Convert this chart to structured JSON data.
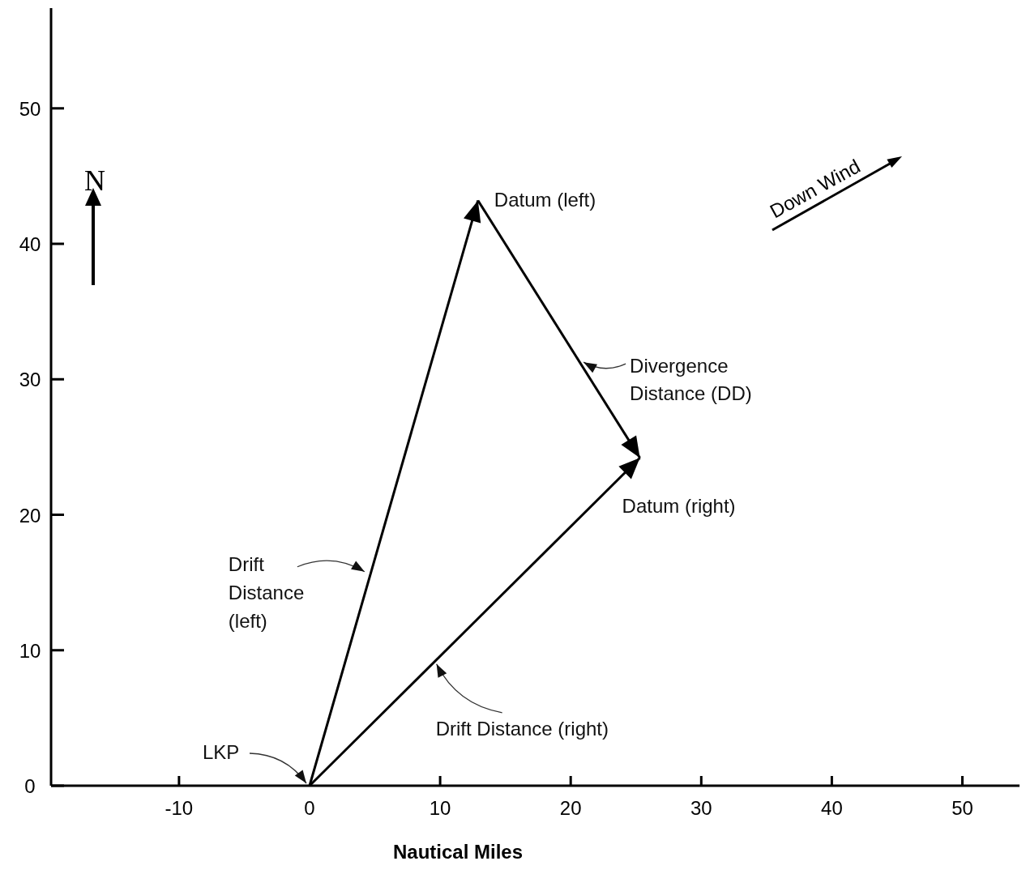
{
  "chart_data": {
    "type": "line",
    "xlabel": "Nautical Miles",
    "xlim": [
      -19.8,
      54.5
    ],
    "ylim": [
      0,
      57.4
    ],
    "xticks": [
      -10,
      0,
      10,
      20,
      30,
      40,
      50
    ],
    "yticks": [
      0,
      10,
      20,
      30,
      40,
      50
    ],
    "grid": false,
    "marker": "none",
    "line_style": "solid",
    "series": [
      {
        "color": "#000000",
        "x": [
          0,
          12.9
        ],
        "values": [
          0,
          43.2
        ]
      },
      {
        "color": "#000000",
        "x": [
          0,
          25.3
        ],
        "values": [
          0,
          24.2
        ]
      },
      {
        "color": "#000000",
        "x": [
          12.9,
          25.3
        ],
        "values": [
          43.2,
          24.2
        ]
      }
    ],
    "annotations": [
      {
        "text": "Datum (left)",
        "x": 12.9,
        "y": 43.2
      },
      {
        "text": "Datum (right)",
        "x": 25.3,
        "y": 24.2
      },
      {
        "text": "LKP",
        "x": 0,
        "y": 0
      },
      {
        "text": "Drift\nDistance\n(left)",
        "x": 4.4,
        "y": 15.8
      },
      {
        "text": "Drift Distance (right)",
        "x": 9.6,
        "y": 9.1
      },
      {
        "text": "Divergence\nDistance (DD)",
        "x": 20.8,
        "y": 31.2
      },
      "N",
      "Down Wind"
    ]
  }
}
